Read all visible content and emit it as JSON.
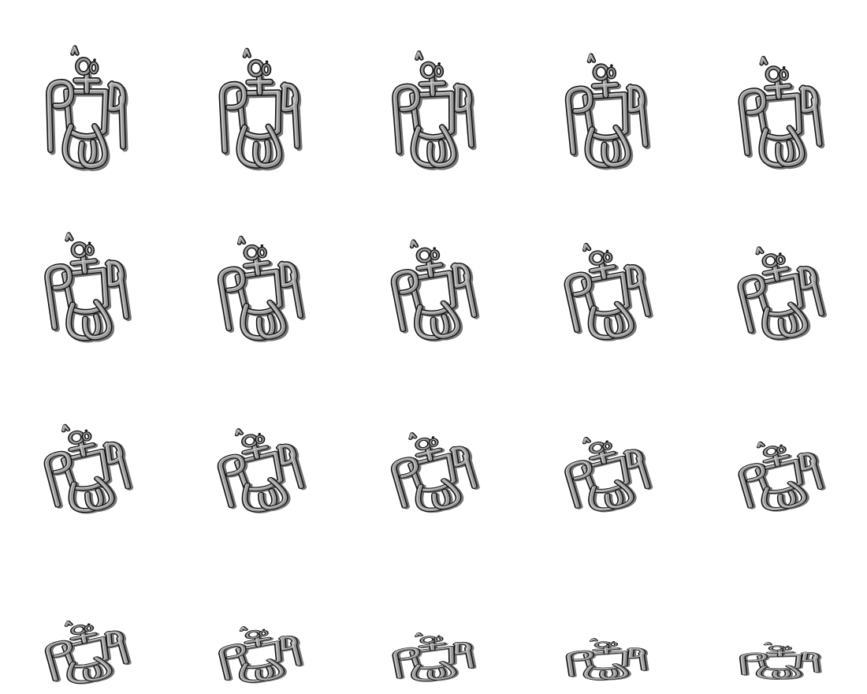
{
  "sheet": {
    "columns": 5,
    "rows": 4,
    "frame_count": 20,
    "object_color": "#9a9a9a",
    "object_dark": "#5f5f5f",
    "outline_color": "#111111",
    "background": "#ffffff"
  },
  "frames": [
    {
      "index": 1,
      "tilt": 0.0
    },
    {
      "index": 2,
      "tilt": 0.03
    },
    {
      "index": 3,
      "tilt": 0.06
    },
    {
      "index": 4,
      "tilt": 0.09
    },
    {
      "index": 5,
      "tilt": 0.12
    },
    {
      "index": 6,
      "tilt": 0.15
    },
    {
      "index": 7,
      "tilt": 0.19
    },
    {
      "index": 8,
      "tilt": 0.23
    },
    {
      "index": 9,
      "tilt": 0.27
    },
    {
      "index": 10,
      "tilt": 0.31
    },
    {
      "index": 11,
      "tilt": 0.36
    },
    {
      "index": 12,
      "tilt": 0.41
    },
    {
      "index": 13,
      "tilt": 0.46
    },
    {
      "index": 14,
      "tilt": 0.52
    },
    {
      "index": 15,
      "tilt": 0.58
    },
    {
      "index": 16,
      "tilt": 0.66
    },
    {
      "index": 17,
      "tilt": 0.74
    },
    {
      "index": 18,
      "tilt": 0.83
    },
    {
      "index": 19,
      "tilt": 0.91
    },
    {
      "index": 20,
      "tilt": 0.97
    }
  ]
}
